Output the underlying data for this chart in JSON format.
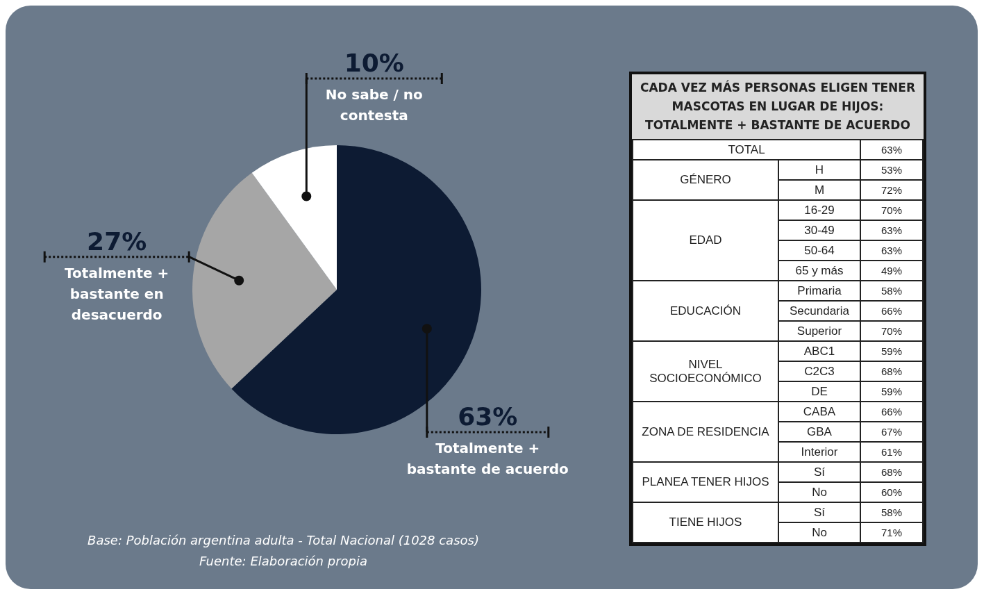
{
  "chart_data": [
    {
      "type": "pie",
      "categories": [
        "Totalmente + bastante de acuerdo",
        "Totalmente + bastante en desacuerdo",
        "No sabe / no contesta"
      ],
      "values": [
        63,
        27,
        10
      ],
      "value_labels": [
        "63%",
        "27%",
        "10%"
      ],
      "colors": [
        "#0d1b33",
        "#a6a6a6",
        "#ffffff"
      ],
      "annotations": [
        "Base: Población argentina adulta - Total Nacional (1028 casos)",
        "Fuente: Elaboración propia"
      ]
    },
    {
      "type": "other",
      "title": "CADA VEZ MÁS PERSONAS ELIGEN TENER MASCOTAS EN LUGAR DE HIJOS: TOTALMENTE + BASTANTE DE ACUERDO",
      "y_categories": [
        "TOTAL",
        "GÉNERO",
        null,
        "EDAD",
        null,
        null,
        null,
        "EDUCACIÓN",
        null,
        null,
        "NIVEL SOCIOECONÓMICO",
        null,
        null,
        "ZONA DE RESIDENCIA",
        null,
        null,
        "PLANEA TENER HIJOS",
        null,
        "TIENE HIJOS",
        null
      ],
      "categories": [
        null,
        "H",
        "M",
        "16-29",
        "30-49",
        "50-64",
        "65 y más",
        "Primaria",
        "Secundaria",
        "Superior",
        "ABC1",
        "C2C3",
        "DE",
        "CABA",
        "GBA",
        "Interior",
        "Sí",
        "No",
        "Sí",
        "No"
      ],
      "values": [
        63,
        53,
        72,
        70,
        63,
        63,
        49,
        58,
        66,
        70,
        59,
        68,
        59,
        66,
        67,
        61,
        68,
        60,
        58,
        71
      ],
      "value_labels": [
        "63%",
        "53%",
        "72%",
        "70%",
        "63%",
        "63%",
        "49%",
        "58%",
        "66%",
        "70%",
        "59%",
        "68%",
        "59%",
        "66%",
        "67%",
        "61%",
        "68%",
        "60%",
        "58%",
        "71%"
      ]
    }
  ]
}
